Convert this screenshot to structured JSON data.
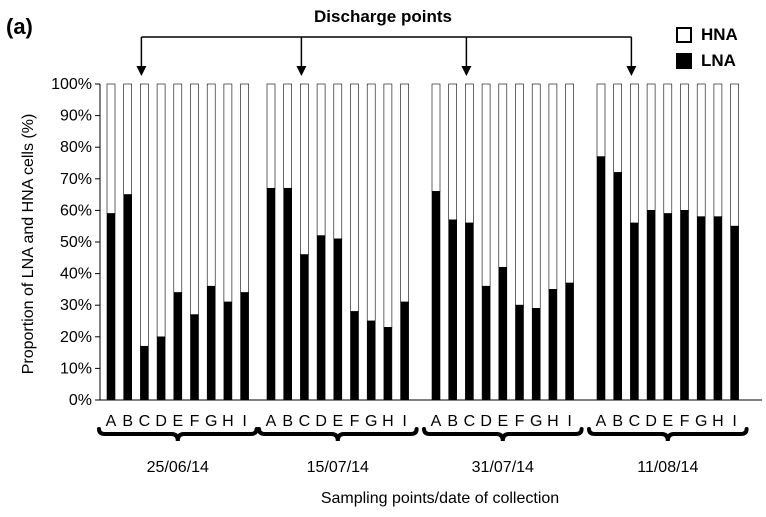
{
  "panel_label": "(a)",
  "annotation": "Discharge points",
  "legend": [
    {
      "label": "HNA",
      "color": "#ffffff"
    },
    {
      "label": "LNA",
      "color": "#000000"
    }
  ],
  "colors": {
    "lna": "#000000",
    "hna": "#ffffff",
    "outline": "#000000"
  },
  "chart_data": {
    "type": "bar",
    "stacked": true,
    "percent_axis": true,
    "ylabel": "Proportion of LNA and HNA cells (%)",
    "xlabel": "Sampling points/date of collection",
    "ylim": [
      0,
      100
    ],
    "yticks": [
      "0%",
      "10%",
      "20%",
      "30%",
      "40%",
      "50%",
      "60%",
      "70%",
      "80%",
      "90%",
      "100%"
    ],
    "grid": false,
    "legend_position": "top-right",
    "groups": [
      {
        "date": "25/06/14",
        "categories": [
          "A",
          "B",
          "C",
          "D",
          "E",
          "F",
          "G",
          "H",
          "I"
        ],
        "lna": [
          59,
          65,
          17,
          20,
          34,
          27,
          36,
          31,
          34
        ]
      },
      {
        "date": "15/07/14",
        "categories": [
          "A",
          "B",
          "C",
          "D",
          "E",
          "F",
          "G",
          "H",
          "I"
        ],
        "lna": [
          67,
          67,
          46,
          52,
          51,
          28,
          25,
          23,
          31
        ]
      },
      {
        "date": "31/07/14",
        "categories": [
          "A",
          "B",
          "C",
          "D",
          "E",
          "F",
          "G",
          "H",
          "I"
        ],
        "lna": [
          66,
          57,
          56,
          36,
          42,
          30,
          29,
          35,
          37
        ]
      },
      {
        "date": "11/08/14",
        "categories": [
          "A",
          "B",
          "C",
          "D",
          "E",
          "F",
          "G",
          "H",
          "I"
        ],
        "lna": [
          77,
          72,
          56,
          60,
          59,
          60,
          58,
          58,
          55
        ]
      }
    ],
    "series": [
      {
        "name": "LNA",
        "key": "lna"
      },
      {
        "name": "HNA",
        "key": "hna",
        "note": "remainder to 100%"
      }
    ],
    "discharge_points": [
      {
        "group": "25/06/14",
        "category": "C"
      },
      {
        "group": "15/07/14",
        "category": "C"
      },
      {
        "group": "31/07/14",
        "category": "C"
      },
      {
        "group": "11/08/14",
        "category": "C"
      }
    ]
  }
}
